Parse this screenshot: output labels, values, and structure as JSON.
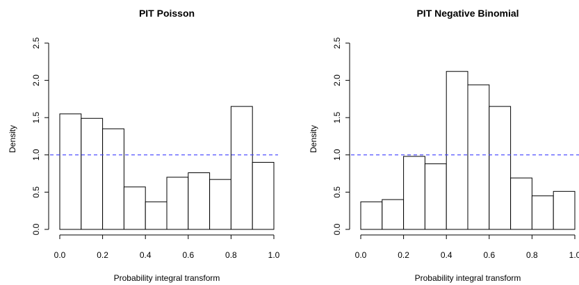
{
  "chart_data": [
    {
      "type": "bar",
      "title": "PIT Poisson",
      "xlabel": "Probability integral transform",
      "ylabel": "Density",
      "bin_edges": [
        0.0,
        0.1,
        0.2,
        0.3,
        0.4,
        0.5,
        0.6,
        0.7,
        0.8,
        0.9,
        1.0
      ],
      "values": [
        1.55,
        1.49,
        1.35,
        0.57,
        0.37,
        0.7,
        0.76,
        0.67,
        1.65,
        0.9
      ],
      "xlim": [
        0.0,
        1.0
      ],
      "ylim": [
        0.0,
        2.5
      ],
      "xticks": [
        "0.0",
        "0.2",
        "0.4",
        "0.6",
        "0.8",
        "1.0"
      ],
      "yticks": [
        "0.0",
        "0.5",
        "1.0",
        "1.5",
        "2.0",
        "2.5"
      ],
      "reference_line": {
        "y": 1.0,
        "style": "dashed",
        "color": "#3b3bff"
      },
      "grid": false
    },
    {
      "type": "bar",
      "title": "PIT Negative Binomial",
      "xlabel": "Probability integral transform",
      "ylabel": "Density",
      "bin_edges": [
        0.0,
        0.1,
        0.2,
        0.3,
        0.4,
        0.5,
        0.6,
        0.7,
        0.8,
        0.9,
        1.0
      ],
      "values": [
        0.37,
        0.4,
        0.98,
        0.88,
        2.12,
        1.94,
        1.65,
        0.69,
        0.45,
        0.51
      ],
      "xlim": [
        0.0,
        1.0
      ],
      "ylim": [
        0.0,
        2.5
      ],
      "xticks": [
        "0.0",
        "0.2",
        "0.4",
        "0.6",
        "0.8",
        "1.0"
      ],
      "yticks": [
        "0.0",
        "0.5",
        "1.0",
        "1.5",
        "2.0",
        "2.5"
      ],
      "reference_line": {
        "y": 1.0,
        "style": "dashed",
        "color": "#3b3bff"
      },
      "grid": false
    }
  ]
}
